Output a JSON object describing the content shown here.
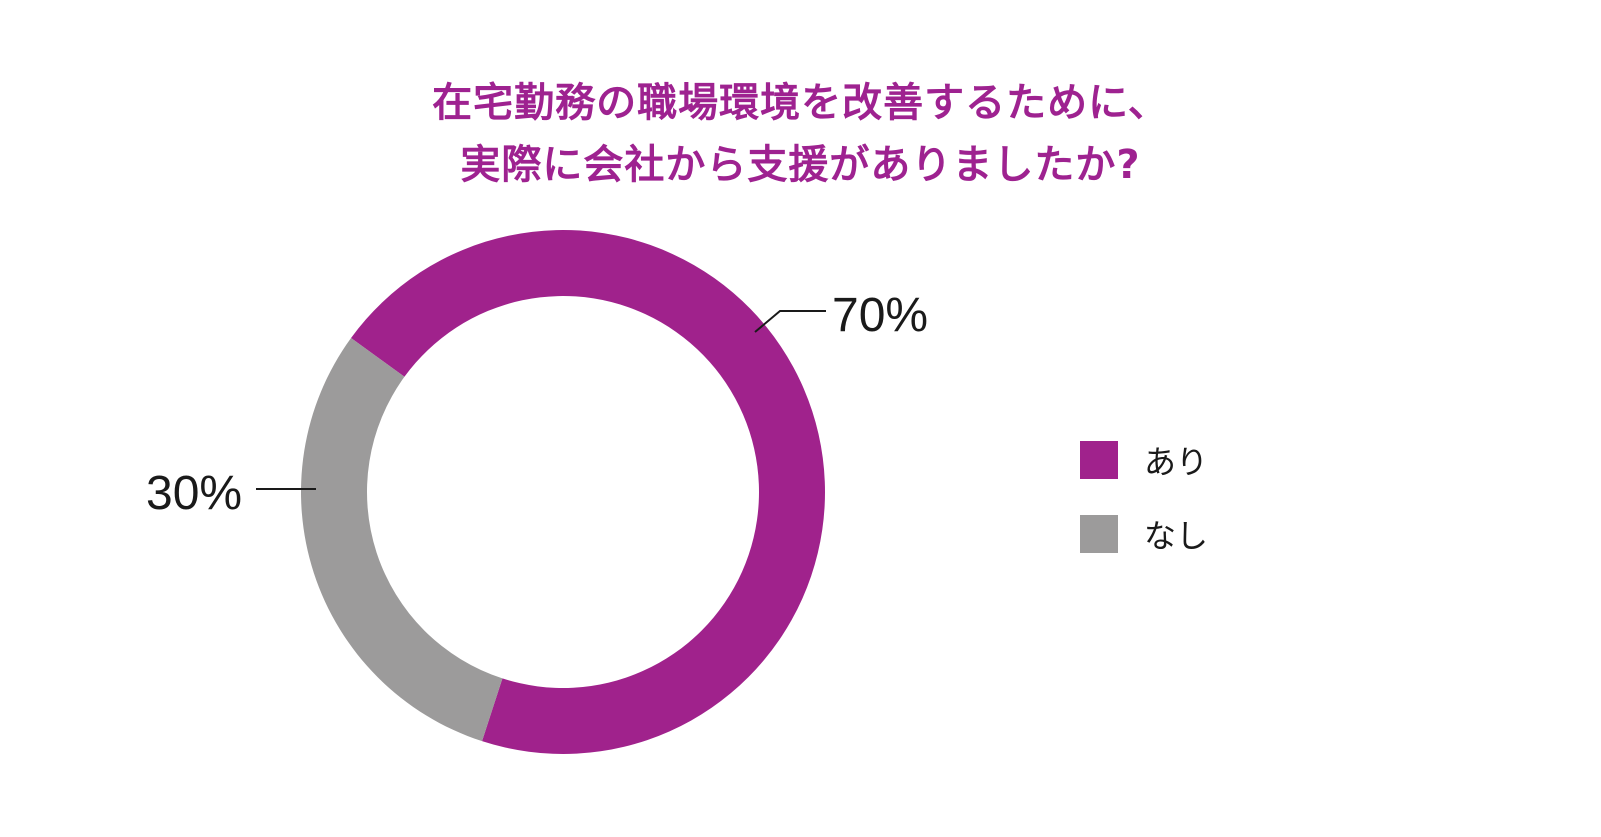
{
  "chart_data": {
    "type": "pie",
    "variant": "donut",
    "title_lines": [
      "在宅勤務の職場環境を改善するために、",
      "実際に会社から支援がありましたか?"
    ],
    "categories": [
      "あり",
      "なし"
    ],
    "values": [
      70,
      30
    ],
    "data_labels": [
      "70%",
      "30%"
    ],
    "colors": [
      "#a0228c",
      "#9c9b9b"
    ],
    "legend_position": "right"
  }
}
